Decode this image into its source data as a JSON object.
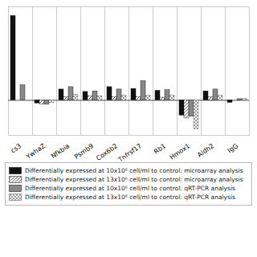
{
  "chart_data": {
    "type": "bar",
    "categories": [
      "cs3",
      "YwhaZ",
      "Nfkbia",
      "Psmb9",
      "Cox6b2",
      "Tnfrsf17",
      "Rb1",
      "Hmox1",
      "Aldh2",
      "IgG"
    ],
    "series": [
      {
        "name": "Differentially expressed at 10x10⁶ cell/ml to control: microarray analysis",
        "color": "#111111",
        "values": [
          14.0,
          -0.5,
          1.8,
          1.4,
          2.2,
          1.9,
          1.6,
          -2.5,
          1.5,
          -0.4
        ]
      },
      {
        "name": "Differentially expressed at 13x10⁶ cell/ml to control: microarray analysis",
        "color": "white",
        "values": [
          0.0,
          -0.7,
          0.5,
          0.7,
          0.55,
          0.55,
          0.45,
          -3.0,
          0.5,
          0.0
        ]
      },
      {
        "name": "Differentially expressed at 10x10⁶ cell/ml to control: qRT-PCR analysis",
        "color": "#888888",
        "values": [
          2.5,
          -0.7,
          2.2,
          1.5,
          1.8,
          3.2,
          1.7,
          -2.7,
          1.8,
          0.2
        ]
      },
      {
        "name": "Differentially expressed at 13x10⁶ cell/ml to control: qRT-PCR analysis",
        "color": "white",
        "values": [
          0.0,
          -0.45,
          0.9,
          0.7,
          0.75,
          0.75,
          0.75,
          -4.8,
          0.75,
          0.25
        ]
      }
    ],
    "ylim": [
      -5.8,
      15.5
    ],
    "tick_labels": "x",
    "legend": "below"
  }
}
